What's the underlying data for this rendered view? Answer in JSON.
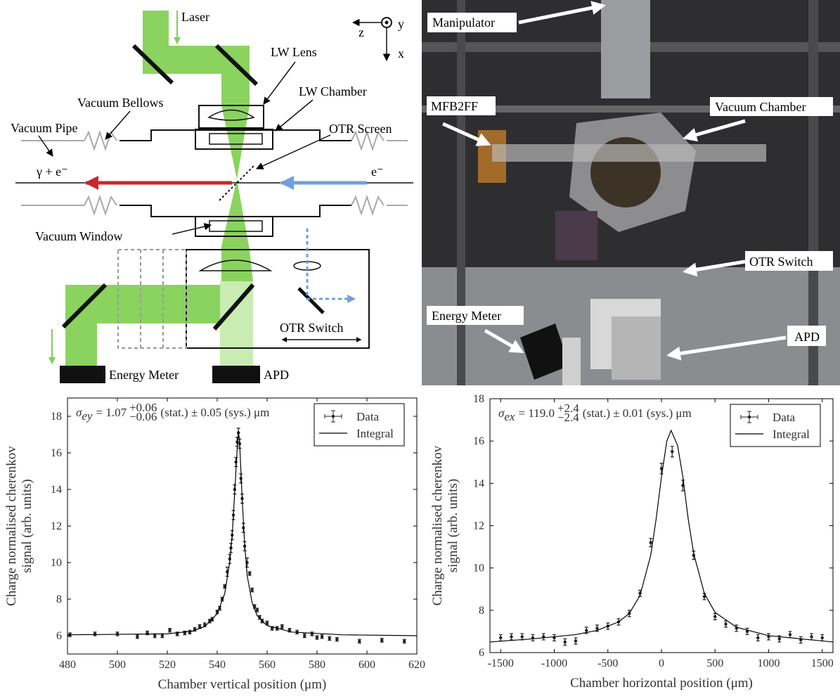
{
  "diagram": {
    "labels": {
      "laser": "Laser",
      "lw_lens": "LW Lens",
      "lw_chamber": "LW Chamber",
      "vacuum_bellows": "Vacuum Bellows",
      "otr_screen": "OTR Screen",
      "vacuum_pipe": "Vacuum Pipe",
      "beam_out": "γ + e⁻",
      "beam_in": "e⁻",
      "vacuum_window": "Vacuum Window",
      "otr_switch": "OTR Switch",
      "energy_meter": "Energy Meter",
      "apd": "APD",
      "axis_z": "z",
      "axis_y": "y",
      "axis_x": "x"
    }
  },
  "photo": {
    "labels": {
      "manipulator": "Manipulator",
      "mfb2ff": "MFB2FF",
      "vacuum_chamber": "Vacuum Chamber",
      "otr_switch": "OTR Switch",
      "energy_meter": "Energy Meter",
      "apd": "APD"
    }
  },
  "chart_data": [
    {
      "type": "scatter",
      "annotation": [
        "σ",
        "ey",
        "= 1.07",
        "+0.06",
        "−0.06",
        "(stat.) ± 0.05 (sys.) μm"
      ],
      "xlabel": "Chamber vertical position (μm)",
      "ylabel": [
        "Charge normalised cherenkov",
        "signal (arb. units)"
      ],
      "xlim": [
        480,
        620
      ],
      "xticks": [
        480,
        500,
        520,
        540,
        560,
        580,
        600,
        620
      ],
      "ylim": [
        5,
        19
      ],
      "yticks": [
        6,
        8,
        10,
        12,
        14,
        16,
        18
      ],
      "legend": "upper right",
      "series": [
        {
          "name": "Data",
          "mode": "points",
          "color": "#222",
          "x": [
            481,
            491,
            500,
            508,
            512,
            515,
            518,
            521,
            524,
            527,
            529,
            531,
            533,
            535,
            537,
            538,
            540,
            541,
            542,
            543,
            544,
            545,
            545.5,
            546,
            546.5,
            547,
            547.5,
            548,
            548.5,
            549,
            549.5,
            550,
            550.5,
            551,
            552,
            553,
            554,
            555,
            556,
            557,
            558,
            560,
            562,
            564,
            566,
            569,
            572,
            575,
            578,
            580,
            582,
            585,
            588,
            597,
            606,
            615
          ],
          "values": [
            6.05,
            6.1,
            6.1,
            5.95,
            6.15,
            6.0,
            6.0,
            6.3,
            6.1,
            6.15,
            6.2,
            6.35,
            6.5,
            6.6,
            6.8,
            6.9,
            7.3,
            7.5,
            8.0,
            8.7,
            9.5,
            10.2,
            10.8,
            11.5,
            12.6,
            14.0,
            15.5,
            16.6,
            17.1,
            16.5,
            14.6,
            13.5,
            11.9,
            10.9,
            10.0,
            9.4,
            8.5,
            7.6,
            7.4,
            7.0,
            6.8,
            6.7,
            6.4,
            6.4,
            6.5,
            6.3,
            6.2,
            6.0,
            6.1,
            5.9,
            5.95,
            5.85,
            5.8,
            5.7,
            5.75,
            5.7
          ],
          "errors": [
            0.1,
            0.1,
            0.1,
            0.1,
            0.1,
            0.1,
            0.1,
            0.1,
            0.1,
            0.1,
            0.1,
            0.1,
            0.1,
            0.1,
            0.1,
            0.1,
            0.1,
            0.1,
            0.1,
            0.1,
            0.25,
            0.25,
            0.25,
            0.25,
            0.25,
            0.25,
            0.25,
            0.25,
            0.25,
            0.25,
            0.25,
            0.25,
            0.25,
            0.25,
            0.25,
            0.1,
            0.1,
            0.1,
            0.1,
            0.1,
            0.1,
            0.1,
            0.1,
            0.1,
            0.1,
            0.1,
            0.1,
            0.1,
            0.1,
            0.1,
            0.1,
            0.1,
            0.1,
            0.1,
            0.1,
            0.1
          ]
        },
        {
          "name": "Integral",
          "mode": "line",
          "color": "#000",
          "x": [
            480,
            520,
            530,
            535,
            540,
            543,
            545,
            546,
            547,
            548,
            548.5,
            549,
            550,
            551,
            552,
            554,
            556,
            560,
            570,
            590,
            620
          ],
          "values": [
            6.05,
            6.1,
            6.25,
            6.5,
            7.2,
            8.3,
            10.0,
            11.5,
            13.8,
            16.2,
            17.2,
            16.5,
            13.5,
            11.0,
            9.3,
            7.8,
            7.1,
            6.55,
            6.2,
            6.05,
            6.0
          ]
        }
      ]
    },
    {
      "type": "scatter",
      "annotation": [
        "σ",
        "ex",
        "= 119.0",
        "+2.4",
        "−2.4",
        "(stat.) ± 0.01 (sys.) μm"
      ],
      "xlabel": "Chamber horizontal position (μm)",
      "ylabel": [
        "Charge normalised cherenkov",
        "signal (arb. units)"
      ],
      "xlim": [
        -1600,
        1600
      ],
      "xticks": [
        -1500,
        -1000,
        -500,
        0,
        500,
        1000,
        1500
      ],
      "ylim": [
        6,
        18
      ],
      "yticks": [
        6,
        8,
        10,
        12,
        14,
        16,
        18
      ],
      "legend": "upper right",
      "series": [
        {
          "name": "Data",
          "mode": "points",
          "color": "#222",
          "x": [
            -1500,
            -1400,
            -1300,
            -1200,
            -1100,
            -1000,
            -900,
            -800,
            -700,
            -600,
            -500,
            -400,
            -300,
            -200,
            -100,
            0,
            100,
            200,
            300,
            400,
            500,
            600,
            700,
            800,
            900,
            1000,
            1100,
            1200,
            1300,
            1400,
            1500
          ],
          "values": [
            6.7,
            6.75,
            6.75,
            6.7,
            6.75,
            6.7,
            6.5,
            6.55,
            7.05,
            7.15,
            7.25,
            7.45,
            7.85,
            8.8,
            11.2,
            14.7,
            15.5,
            13.9,
            10.6,
            8.65,
            7.7,
            7.35,
            7.15,
            7.0,
            6.7,
            6.75,
            6.65,
            6.85,
            6.6,
            6.75,
            6.7
          ],
          "errors": [
            0.15,
            0.15,
            0.15,
            0.15,
            0.15,
            0.15,
            0.15,
            0.15,
            0.15,
            0.15,
            0.15,
            0.15,
            0.15,
            0.15,
            0.2,
            0.25,
            0.25,
            0.25,
            0.2,
            0.15,
            0.15,
            0.15,
            0.15,
            0.15,
            0.15,
            0.15,
            0.15,
            0.15,
            0.15,
            0.15,
            0.15
          ]
        },
        {
          "name": "Integral",
          "mode": "line",
          "color": "#000",
          "x": [
            -1600,
            -1200,
            -800,
            -600,
            -400,
            -300,
            -200,
            -100,
            -50,
            0,
            50,
            90,
            150,
            200,
            250,
            300,
            400,
            500,
            700,
            1000,
            1600
          ],
          "values": [
            6.5,
            6.65,
            6.85,
            7.05,
            7.45,
            7.85,
            8.7,
            10.6,
            12.3,
            14.3,
            16.0,
            16.5,
            15.8,
            14.3,
            12.3,
            10.7,
            8.8,
            7.9,
            7.2,
            6.8,
            6.5
          ]
        }
      ]
    }
  ]
}
